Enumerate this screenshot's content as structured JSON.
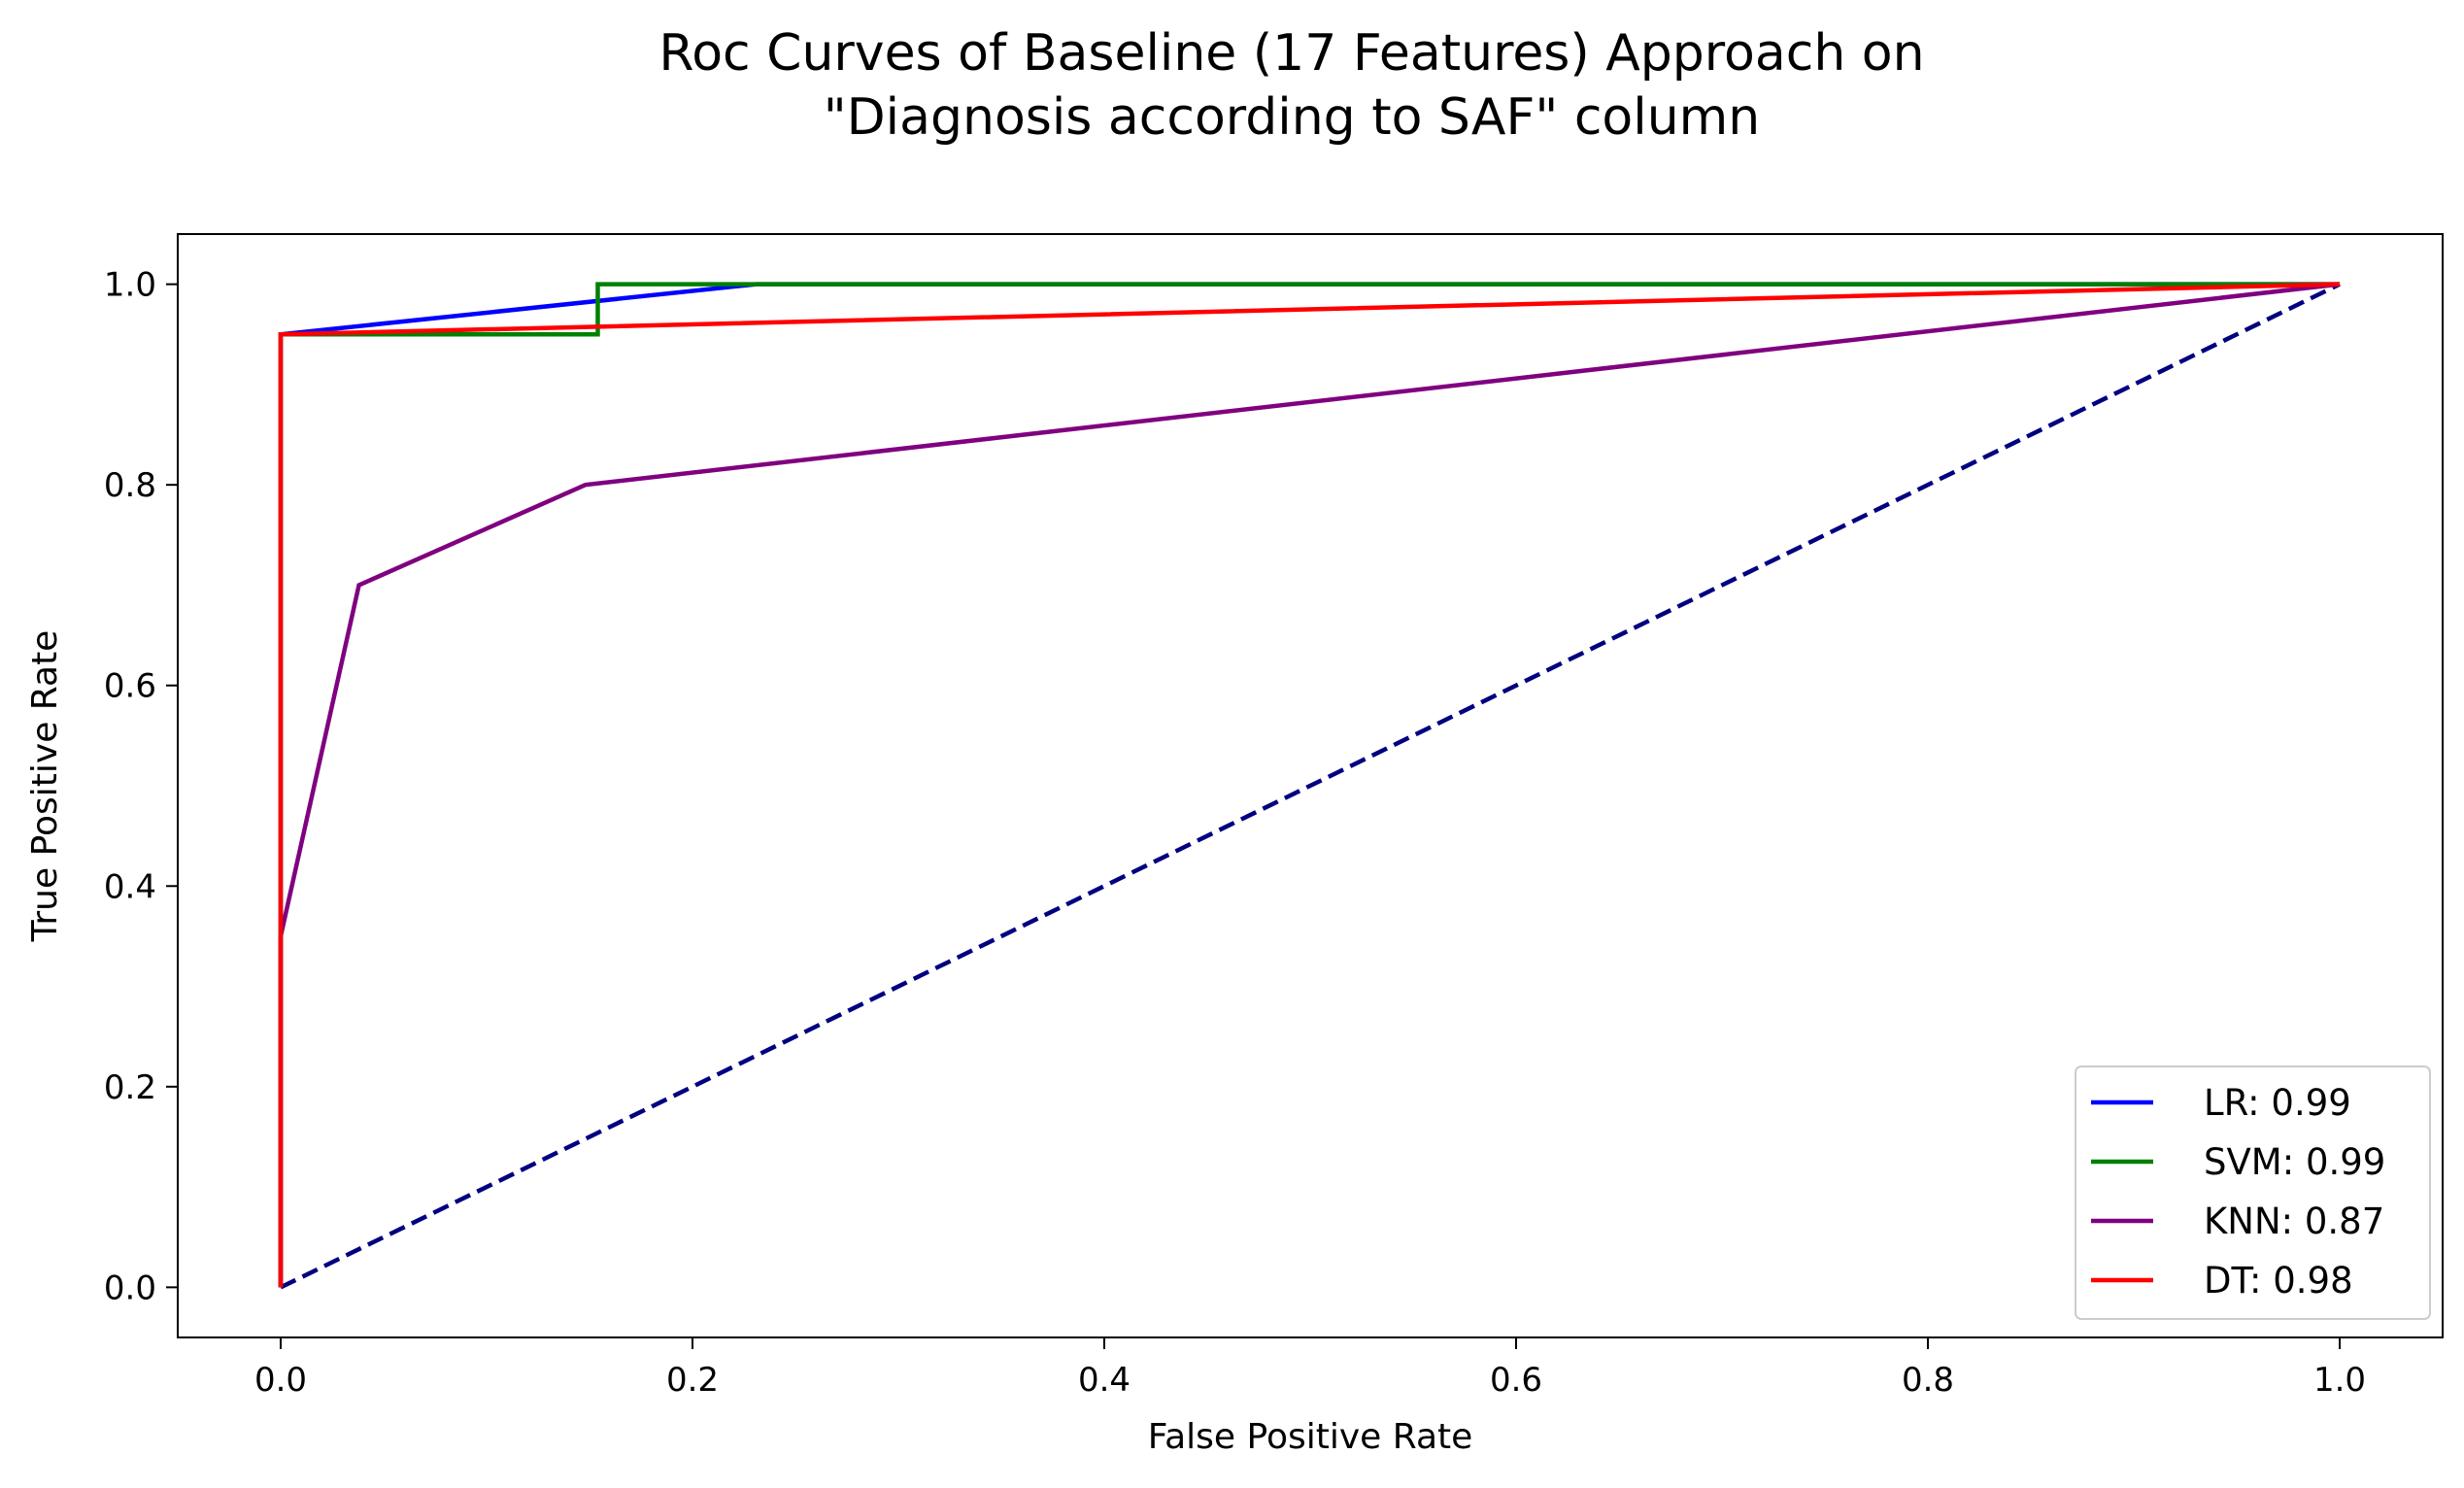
{
  "chart_data": {
    "type": "line",
    "title": "Roc Curves of Baseline (17 Features) Approach on",
    "subtitle": "\"Diagnosis according to SAF\" column",
    "xlabel": "False Positive Rate",
    "ylabel": "True Positive Rate",
    "xlim": [
      -0.05,
      1.05
    ],
    "ylim": [
      -0.05,
      1.05
    ],
    "xticks": [
      0.0,
      0.2,
      0.4,
      0.6,
      0.8,
      1.0
    ],
    "yticks": [
      0.0,
      0.2,
      0.4,
      0.6,
      0.8,
      1.0
    ],
    "xtick_labels": [
      "0.0",
      "0.2",
      "0.4",
      "0.6",
      "0.8",
      "1.0"
    ],
    "ytick_labels": [
      "0.0",
      "0.2",
      "0.4",
      "0.6",
      "0.8",
      "1.0"
    ],
    "grid": false,
    "legend_position": "lower-right",
    "series": [
      {
        "name": "LR: 0.99",
        "color": "#0000ff",
        "x": [
          0.0,
          0.0,
          0.231,
          1.0
        ],
        "y": [
          0.0,
          0.95,
          1.0,
          1.0
        ]
      },
      {
        "name": "SVM: 0.99",
        "color": "#008000",
        "x": [
          0.0,
          0.0,
          0.154,
          0.154,
          1.0
        ],
        "y": [
          0.0,
          0.95,
          0.95,
          1.0,
          1.0
        ]
      },
      {
        "name": "KNN: 0.87",
        "color": "#800080",
        "x": [
          0.0,
          0.0,
          0.038,
          0.148,
          1.0
        ],
        "y": [
          0.0,
          0.35,
          0.7,
          0.8,
          1.0
        ]
      },
      {
        "name": "DT: 0.98",
        "color": "#ff0000",
        "x": [
          0.0,
          0.0,
          1.0
        ],
        "y": [
          0.0,
          0.95,
          1.0
        ]
      }
    ],
    "reference_line": {
      "color": "#000080",
      "style": "dashed",
      "x": [
        0.0,
        1.0
      ],
      "y": [
        0.0,
        1.0
      ]
    }
  }
}
